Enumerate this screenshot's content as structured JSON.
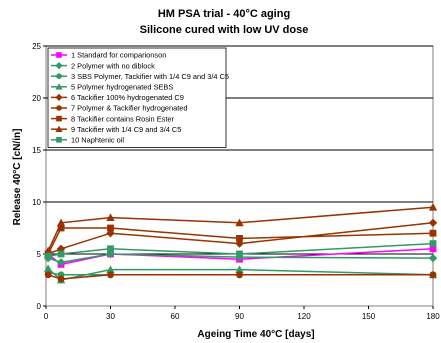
{
  "chart_data": {
    "type": "line",
    "title": "HM PSA trial - 40°C aging",
    "subtitle": "Silicone cured with low UV dose",
    "xlabel": "Ageing Time 40°C [days]",
    "ylabel": "Release 40°C [cN/in]",
    "xlim": [
      0,
      180
    ],
    "ylim": [
      0,
      25
    ],
    "xticks": [
      "0",
      "30",
      "60",
      "90",
      "120",
      "150",
      "180"
    ],
    "yticks": [
      "0",
      "5",
      "10",
      "15",
      "20",
      "25"
    ],
    "grid": "horizontal",
    "legend_position": "top-left",
    "x": [
      1,
      7,
      30,
      90,
      180
    ],
    "series": [
      {
        "name": "1 Standard  for comparionson",
        "color": "#ff00ff",
        "marker": "square",
        "values": [
          5.0,
          4.0,
          5.0,
          4.5,
          5.5
        ]
      },
      {
        "name": "2 Polymer with no diblock",
        "color": "#339966",
        "marker": "diamond",
        "values": [
          4.6,
          4.2,
          5.0,
          4.7,
          4.6
        ]
      },
      {
        "name": "3 SBS Polymer, Tackifier with 1/4 C9 and 3/4 C5",
        "color": "#339966",
        "marker": "circle",
        "values": [
          3.2,
          3.0,
          3.0,
          3.0,
          3.0
        ]
      },
      {
        "name": "5 Polymer hydrogenated SEBS",
        "color": "#339966",
        "marker": "triangle",
        "values": [
          3.6,
          2.5,
          3.5,
          3.5,
          3.0
        ]
      },
      {
        "name": "6 Tackifier 100% hydrogenated C9",
        "color": "#993300",
        "marker": "diamond",
        "values": [
          5.0,
          5.5,
          7.0,
          6.0,
          8.0
        ]
      },
      {
        "name": "7 Polymer & Tackifier hydrogenated",
        "color": "#993300",
        "marker": "circle",
        "values": [
          3.0,
          2.6,
          3.0,
          3.0,
          3.0
        ]
      },
      {
        "name": "8 Tackifier contains Rosin Ester",
        "color": "#993300",
        "marker": "square",
        "values": [
          5.0,
          7.5,
          7.5,
          6.5,
          7.0
        ]
      },
      {
        "name": "9 Tackifier with 1/4 C9 and 3/4 C5",
        "color": "#993300",
        "marker": "triangle",
        "values": [
          5.3,
          8.0,
          8.5,
          8.0,
          9.5
        ]
      },
      {
        "name": "10 Naphtenic oil",
        "color": "#339966",
        "marker": "square",
        "values": [
          4.8,
          5.0,
          5.5,
          5.0,
          6.0
        ]
      }
    ]
  }
}
